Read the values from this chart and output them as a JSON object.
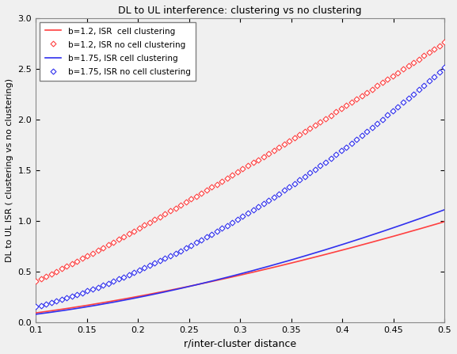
{
  "title": "DL to UL interference: clustering vs no clustering",
  "xlabel": "r/inter-cluster distance",
  "ylabel": "DL to UL ISR ( clustering vs no clustering)",
  "xlim": [
    0.1,
    0.5
  ],
  "ylim": [
    0,
    3
  ],
  "xticks": [
    0.1,
    0.15,
    0.2,
    0.25,
    0.3,
    0.35,
    0.4,
    0.45,
    0.5
  ],
  "yticks": [
    0,
    0.5,
    1,
    1.5,
    2,
    2.5,
    3
  ],
  "b1": 1.2,
  "b2": 1.75,
  "color_red": "#FF4040",
  "color_blue": "#3030EE",
  "legend": [
    "b=1.2, ISR  cell clustering",
    "b=1.2, ISR no cell clustering",
    "b=1.75, ISR cell clustering",
    "b=1.75, ISR no cell clustering"
  ],
  "A_red_solid": 1.9,
  "alpha_red_solid": 1.0,
  "A_blue_solid": 2.6,
  "alpha_blue_solid": 1.0,
  "A_red_dash": 6.34,
  "alpha_red_dash": 1.2,
  "A_blue_dash": 8.44,
  "alpha_blue_dash": 1.75,
  "bg_color": "#F0F0F0"
}
